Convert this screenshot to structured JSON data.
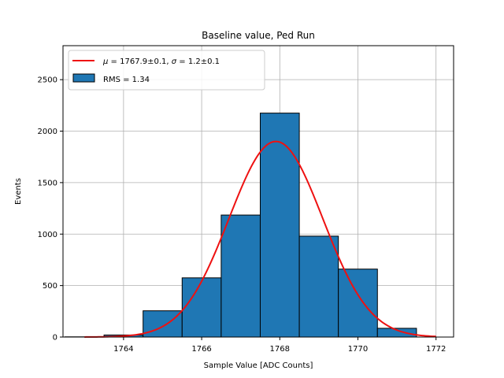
{
  "chart_data": {
    "type": "bar",
    "title": "Baseline value, Ped Run",
    "xlabel": "Sample Value [ADC Counts]",
    "ylabel": "Events",
    "xlim": [
      1762.45,
      1772.45
    ],
    "ylim": [
      0,
      2830
    ],
    "x_ticks": [
      1764,
      1766,
      1768,
      1770,
      1772
    ],
    "y_ticks": [
      0,
      500,
      1000,
      1500,
      2000,
      2500
    ],
    "grid": true,
    "legend_position": "top-left",
    "histogram": {
      "name": "RMS = 1.34",
      "color": "#1f77b4",
      "edge_color": "#000000",
      "bin_edges": [
        1762.5,
        1763.5,
        1764.5,
        1765.5,
        1766.5,
        1767.5,
        1768.5,
        1769.5,
        1770.5,
        1771.5
      ],
      "values": [
        2,
        20,
        255,
        575,
        1185,
        2175,
        980,
        660,
        85
      ]
    },
    "fit": {
      "name": "$\\mu = 1767.9 \\pm 0.1$, $\\sigma = 1.2 \\pm 0.1$",
      "color": "#ee1111",
      "type": "gaussian",
      "amplitude": 1900,
      "mu": 1767.9,
      "sigma": 1.2,
      "x_range": [
        1763,
        1772
      ]
    },
    "legend": {
      "fit_label": {
        "mu_sym": "μ",
        "mu_text": " = 1767.9±0.1, ",
        "sigma_sym": "σ",
        "sigma_text": " = 1.2±0.1"
      },
      "hist_label": "RMS = 1.34"
    }
  }
}
